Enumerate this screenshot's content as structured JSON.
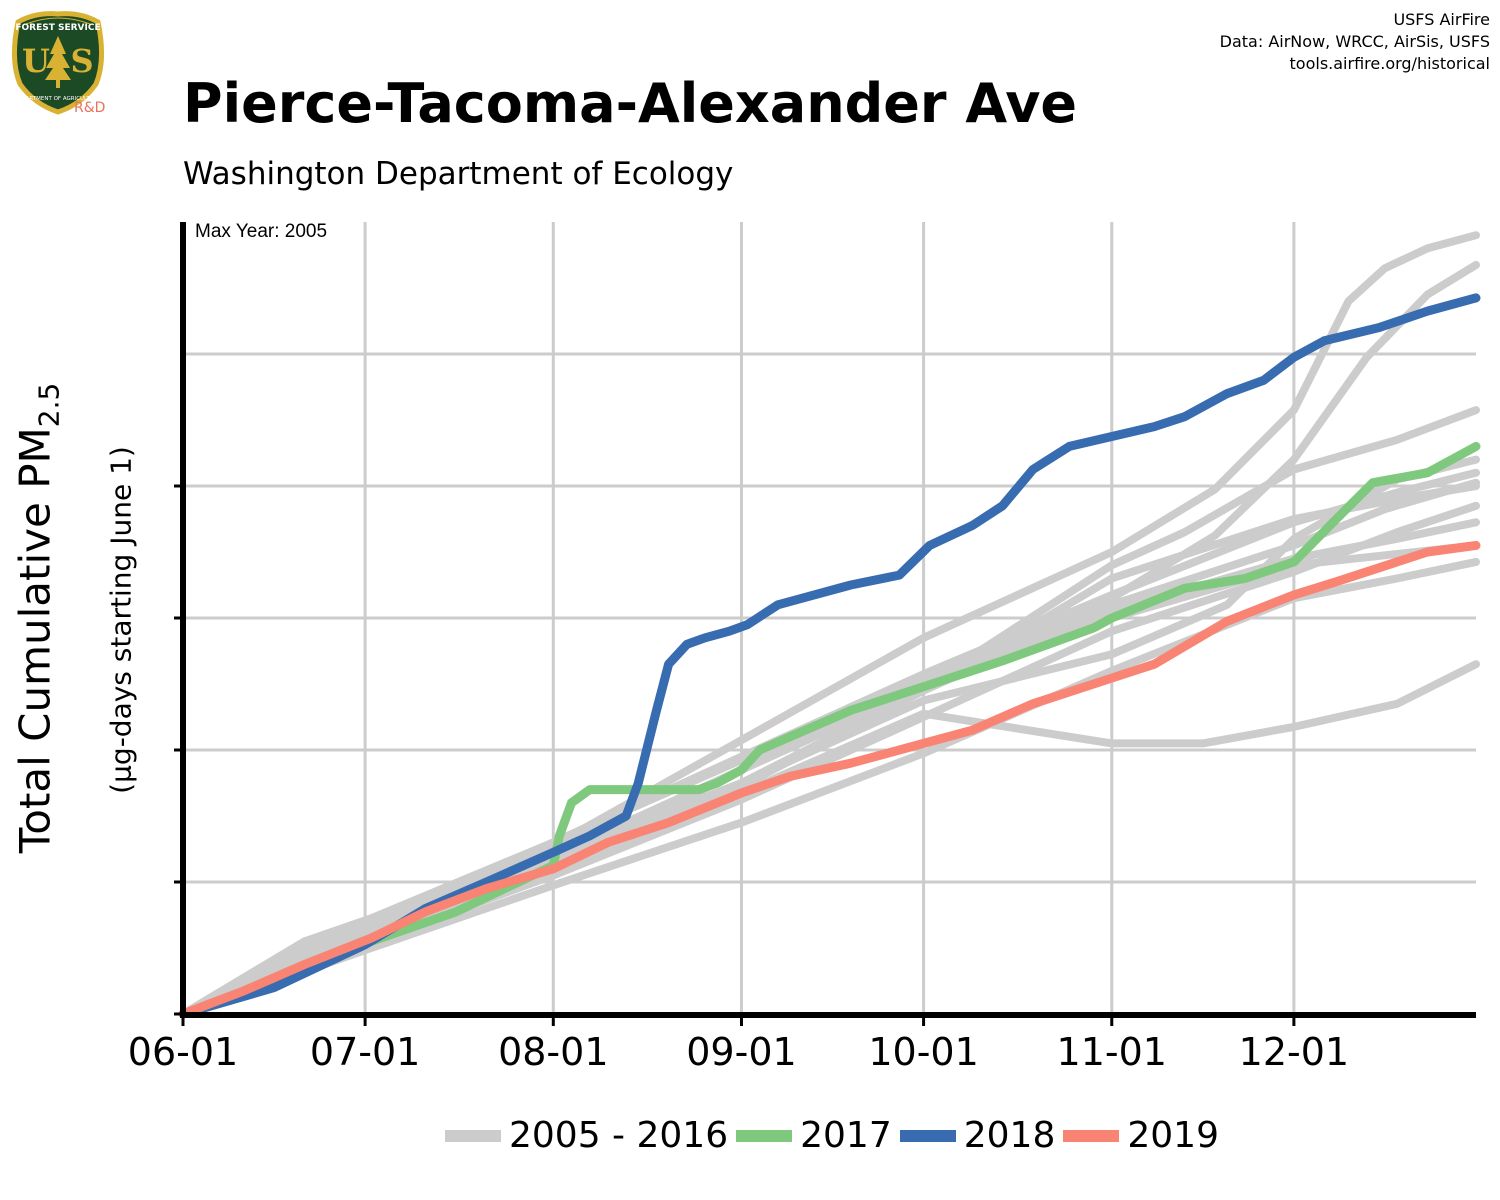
{
  "header": {
    "title": "Pierce-Tacoma-Alexander Ave",
    "subtitle": "Washington Department of Ecology",
    "credits": [
      "USFS AirFire",
      "Data: AirNow, WRCC, AirSis, USFS",
      "tools.airfire.org/historical"
    ],
    "logo_text": [
      "FOREST SERVICE",
      "U",
      "S",
      "DEPARTMENT OF AGRICULTURE",
      "R&D"
    ]
  },
  "annotation": "Max Year: 2005",
  "colors": {
    "history": "#cccccc",
    "2017": "#7fc97f",
    "2018": "#386cb0",
    "2019": "#f98473",
    "grid": "#cccccc",
    "logo_green": "#1c4a24",
    "logo_gold": "#d9b233",
    "logo_rd": "#e8735a"
  },
  "chart_data": {
    "type": "line",
    "ylabel": "Total Cumulative PM",
    "ylabel_sub": "2.5",
    "ylabel2": "(µg-days starting June 1)",
    "xlim": [
      "06-01",
      "12-31"
    ],
    "ylim": [
      0,
      2400
    ],
    "grid": true,
    "legend_position": "bottom",
    "x_ticks": [
      {
        "label": "06-01",
        "day": 0
      },
      {
        "label": "07-01",
        "day": 30
      },
      {
        "label": "08-01",
        "day": 61
      },
      {
        "label": "09-01",
        "day": 92
      },
      {
        "label": "10-01",
        "day": 122
      },
      {
        "label": "11-01",
        "day": 153
      },
      {
        "label": "12-01",
        "day": 183
      }
    ],
    "legend": [
      {
        "label": "2005 - 2016",
        "color": "#cccccc"
      },
      {
        "label": "2017",
        "color": "#7fc97f"
      },
      {
        "label": "2018",
        "color": "#386cb0"
      },
      {
        "label": "2019",
        "color": "#f98473"
      }
    ],
    "history_series": [
      {
        "name": "2005",
        "x": [
          0,
          20,
          31,
          60,
          92,
          122,
          153,
          170,
          183,
          192,
          198,
          205,
          213
        ],
        "y": [
          0,
          200,
          280,
          500,
          830,
          1140,
          1400,
          1590,
          1830,
          2160,
          2260,
          2320,
          2360
        ]
      },
      {
        "name": "2006",
        "x": [
          0,
          31,
          61,
          92,
          122,
          140,
          153,
          170,
          183,
          195,
          205,
          213
        ],
        "y": [
          0,
          240,
          420,
          690,
          980,
          1130,
          1260,
          1450,
          1680,
          1990,
          2180,
          2270
        ]
      },
      {
        "name": "2007",
        "x": [
          0,
          31,
          61,
          92,
          122,
          153,
          183,
          198,
          213
        ],
        "y": [
          0,
          270,
          480,
          740,
          1020,
          1240,
          1420,
          1530,
          1610
        ]
      },
      {
        "name": "2008",
        "x": [
          0,
          31,
          61,
          92,
          122,
          153,
          165,
          183,
          200,
          213
        ],
        "y": [
          0,
          250,
          450,
          740,
          990,
          1360,
          1460,
          1650,
          1740,
          1830
        ]
      },
      {
        "name": "2009",
        "x": [
          0,
          31,
          61,
          92,
          122,
          153,
          172,
          183,
          200,
          213
        ],
        "y": [
          0,
          260,
          480,
          700,
          950,
          1090,
          1240,
          1440,
          1620,
          1680
        ]
      },
      {
        "name": "2010",
        "x": [
          0,
          31,
          61,
          92,
          122,
          153,
          183,
          200,
          213
        ],
        "y": [
          0,
          220,
          420,
          650,
          900,
          1160,
          1340,
          1460,
          1540
        ]
      },
      {
        "name": "2011",
        "x": [
          0,
          31,
          61,
          92,
          122,
          153,
          183,
          200,
          213
        ],
        "y": [
          0,
          230,
          460,
          700,
          980,
          1320,
          1500,
          1560,
          1600
        ]
      },
      {
        "name": "2012",
        "x": [
          0,
          20,
          31,
          61,
          92,
          100,
          122,
          153,
          183,
          213
        ],
        "y": [
          0,
          220,
          290,
          520,
          770,
          820,
          1020,
          1200,
          1360,
          1420
        ]
      },
      {
        "name": "2013",
        "x": [
          0,
          31,
          61,
          92,
          122,
          153,
          168,
          183,
          200,
          213
        ],
        "y": [
          0,
          240,
          440,
          670,
          910,
          820,
          820,
          870,
          940,
          1060
        ]
      },
      {
        "name": "2014",
        "x": [
          0,
          31,
          61,
          92,
          122,
          153,
          183,
          200,
          213
        ],
        "y": [
          0,
          200,
          390,
          580,
          790,
          1040,
          1260,
          1320,
          1370
        ]
      },
      {
        "name": "2015",
        "x": [
          0,
          31,
          61,
          92,
          122,
          153,
          183,
          200,
          213
        ],
        "y": [
          0,
          280,
          520,
          780,
          1030,
          1270,
          1490,
          1580,
          1640
        ]
      },
      {
        "name": "2016",
        "x": [
          0,
          31,
          61,
          92,
          122,
          153,
          183,
          200,
          213
        ],
        "y": [
          0,
          260,
          470,
          740,
          990,
          1220,
          1380,
          1440,
          1490
        ]
      }
    ],
    "series": [
      {
        "name": "2017",
        "color": "#7fc97f",
        "x": [
          0,
          10,
          20,
          31,
          45,
          61,
          62,
          64,
          67,
          75,
          82,
          85,
          88,
          92,
          95,
          100,
          105,
          110,
          120,
          135,
          150,
          153,
          165,
          175,
          183,
          190,
          196,
          205,
          213
        ],
        "y": [
          0,
          60,
          140,
          220,
          310,
          450,
          540,
          640,
          680,
          680,
          680,
          680,
          700,
          740,
          800,
          840,
          880,
          920,
          980,
          1070,
          1170,
          1200,
          1290,
          1320,
          1370,
          1500,
          1610,
          1640,
          1720
        ]
      },
      {
        "name": "2018",
        "color": "#386cb0",
        "x": [
          0,
          15,
          30,
          40,
          50,
          61,
          67,
          73,
          75,
          78,
          80,
          83,
          86,
          90,
          93,
          98,
          102,
          110,
          118,
          123,
          130,
          135,
          140,
          146,
          153,
          160,
          165,
          172,
          178,
          183,
          188,
          197,
          205,
          213
        ],
        "y": [
          0,
          80,
          210,
          320,
          400,
          490,
          540,
          600,
          700,
          920,
          1060,
          1120,
          1140,
          1160,
          1180,
          1240,
          1260,
          1300,
          1330,
          1420,
          1480,
          1540,
          1650,
          1720,
          1750,
          1780,
          1810,
          1880,
          1920,
          1990,
          2040,
          2080,
          2130,
          2170
        ]
      },
      {
        "name": "2019",
        "color": "#f98473",
        "x": [
          0,
          10,
          20,
          31,
          40,
          50,
          61,
          70,
          80,
          92,
          100,
          110,
          122,
          130,
          140,
          150,
          160,
          172,
          183,
          190,
          200,
          205,
          213
        ],
        "y": [
          0,
          70,
          150,
          230,
          310,
          380,
          440,
          520,
          580,
          670,
          720,
          760,
          820,
          860,
          940,
          1000,
          1060,
          1190,
          1270,
          1310,
          1370,
          1400,
          1420
        ]
      }
    ]
  }
}
